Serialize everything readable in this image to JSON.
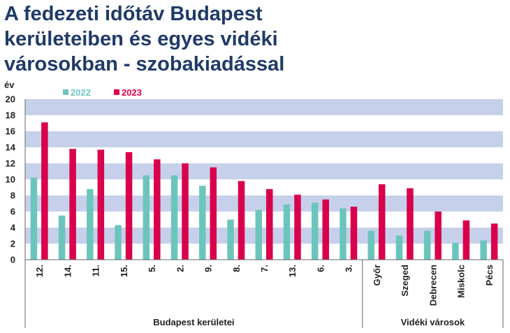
{
  "title_lines": [
    "A fedezeti időtáv Budapest",
    "kerületeiben és egyes vidéki",
    "városokban - szobakiadással"
  ],
  "chart_data": {
    "type": "bar",
    "title": "A fedezeti időtáv Budapest kerületeiben és egyes vidéki városokban - szobakiadással",
    "ylabel": "év",
    "xlabel": "",
    "ylim": [
      0,
      20
    ],
    "yticks": [
      0,
      2,
      4,
      6,
      8,
      10,
      12,
      14,
      16,
      18,
      20
    ],
    "legend_position": "top-left",
    "grid": "alternating bands",
    "categories": [
      "12.",
      "14.",
      "11.",
      "15.",
      "5.",
      "2.",
      "9.",
      "8.",
      "7.",
      "13.",
      "6.",
      "3.",
      "Győr",
      "Szeged",
      "Debrecen",
      "Miskolc",
      "Pécs"
    ],
    "groups": [
      {
        "label": "Budapest kerületei",
        "count": 12
      },
      {
        "label": "Vidéki városok",
        "count": 5
      }
    ],
    "series": [
      {
        "name": "2022",
        "color": "#6cc5bd",
        "values": [
          10.2,
          5.5,
          8.8,
          4.3,
          10.5,
          10.5,
          9.2,
          5.0,
          6.2,
          6.9,
          7.1,
          6.4,
          3.6,
          3.0,
          3.6,
          2.1,
          2.4
        ]
      },
      {
        "name": "2023",
        "color": "#d9004c",
        "values": [
          17.1,
          13.8,
          13.7,
          13.4,
          12.5,
          12.0,
          11.5,
          9.8,
          8.8,
          8.1,
          7.5,
          6.6,
          9.4,
          8.9,
          6.0,
          4.9,
          4.5
        ]
      }
    ]
  }
}
